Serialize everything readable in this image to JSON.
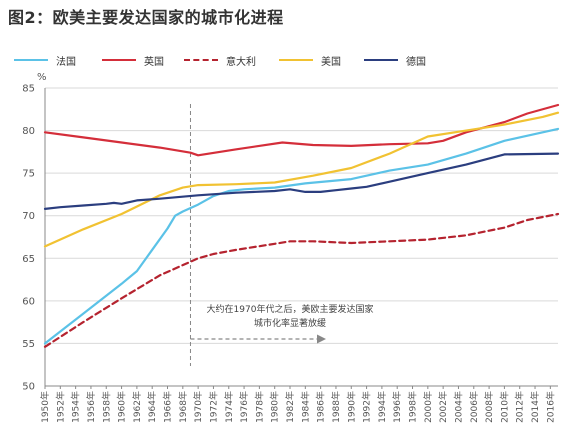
{
  "title": "图2：欧美主要发达国家的城市化进程",
  "chart_data": {
    "type": "line",
    "ylabel": "%",
    "ylim": [
      50,
      85
    ],
    "yticks": [
      50,
      55,
      60,
      65,
      70,
      75,
      80,
      85
    ],
    "xlim": [
      1950,
      2017
    ],
    "xtick_labels": [
      "1950年",
      "1952年",
      "1954年",
      "1956年",
      "1958年",
      "1960年",
      "1962年",
      "1964年",
      "1966年",
      "1968年",
      "1970年",
      "1972年",
      "1974年",
      "1976年",
      "1978年",
      "1980年",
      "1982年",
      "1984年",
      "1986年",
      "1988年",
      "1990年",
      "1992年",
      "1994年",
      "1996年",
      "1998年",
      "2000年",
      "2002年",
      "2004年",
      "2006年",
      "2008年",
      "2010年",
      "2012年",
      "2014年",
      "2016年"
    ],
    "grid": "horizontal",
    "legend_position": "top",
    "series": [
      {
        "name": "法国",
        "color": "#5bc2e7",
        "dash": false,
        "x": [
          1950,
          1955,
          1960,
          1962,
          1964,
          1966,
          1967,
          1968,
          1970,
          1972,
          1974,
          1976,
          1980,
          1984,
          1990,
          1995,
          2000,
          2005,
          2010,
          2017
        ],
        "y": [
          55.0,
          58.5,
          62.0,
          63.5,
          66.0,
          68.5,
          70.0,
          70.5,
          71.3,
          72.3,
          72.9,
          73.1,
          73.3,
          73.8,
          74.3,
          75.3,
          76.0,
          77.3,
          78.8,
          80.2
        ]
      },
      {
        "name": "英国",
        "color": "#d42e3a",
        "dash": false,
        "x": [
          1950,
          1955,
          1960,
          1965,
          1969,
          1970,
          1975,
          1981,
          1985,
          1990,
          1995,
          2000,
          2002,
          2005,
          2010,
          2013,
          2017
        ],
        "y": [
          79.8,
          79.2,
          78.6,
          78.0,
          77.4,
          77.1,
          77.8,
          78.6,
          78.3,
          78.2,
          78.4,
          78.5,
          78.8,
          79.8,
          81.0,
          82.0,
          83.0
        ]
      },
      {
        "name": "意大利",
        "color": "#b5232f",
        "dash": true,
        "x": [
          1950,
          1955,
          1960,
          1965,
          1970,
          1972,
          1975,
          1980,
          1982,
          1985,
          1990,
          1995,
          2000,
          2005,
          2010,
          2013,
          2017
        ],
        "y": [
          54.6,
          57.5,
          60.3,
          63.0,
          65.0,
          65.5,
          66.0,
          66.7,
          67.0,
          67.0,
          66.8,
          67.0,
          67.2,
          67.7,
          68.6,
          69.5,
          70.2
        ]
      },
      {
        "name": "美国",
        "color": "#f1c232",
        "dash": false,
        "x": [
          1950,
          1955,
          1960,
          1965,
          1968,
          1970,
          1975,
          1980,
          1985,
          1990,
          1995,
          2000,
          2005,
          2010,
          2015,
          2017
        ],
        "y": [
          66.4,
          68.4,
          70.2,
          72.4,
          73.3,
          73.6,
          73.7,
          73.9,
          74.7,
          75.6,
          77.3,
          79.3,
          80.0,
          80.7,
          81.6,
          82.1
        ]
      },
      {
        "name": "德国",
        "color": "#2b3e7f",
        "dash": false,
        "x": [
          1950,
          1952,
          1955,
          1958,
          1959,
          1960,
          1962,
          1965,
          1970,
          1975,
          1980,
          1982,
          1984,
          1986,
          1988,
          1990,
          1992,
          1995,
          2000,
          2005,
          2010,
          2017
        ],
        "y": [
          70.8,
          71.0,
          71.2,
          71.4,
          71.5,
          71.4,
          71.8,
          72.0,
          72.4,
          72.7,
          72.9,
          73.1,
          72.8,
          72.8,
          73.0,
          73.2,
          73.4,
          74.0,
          75.0,
          76.0,
          77.2,
          77.3
        ]
      }
    ],
    "annotation": {
      "x": 1969,
      "lines": [
        "大约在1970年代之后，美欧主要发达国家",
        "城市化率显著放缓"
      ]
    }
  }
}
